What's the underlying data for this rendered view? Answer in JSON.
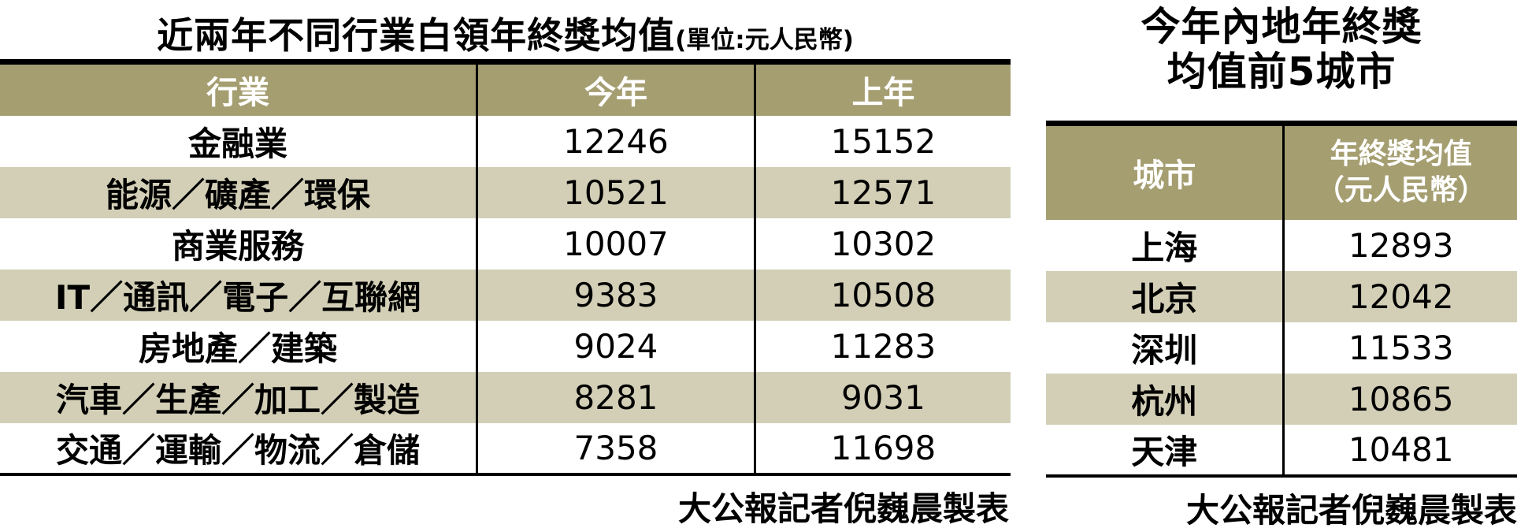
{
  "colors": {
    "header_bg": "#a59e71",
    "row_alt_bg": "#d3cfb7",
    "rule": "#000000",
    "header_text": "#ffffff",
    "body_text": "#000000"
  },
  "chart_data": [
    {
      "type": "table",
      "title": "近兩年不同行業白領年終獎均值",
      "title_unit": "(單位:元人民幣)",
      "columns": [
        "行業",
        "今年",
        "上年"
      ],
      "rows": [
        [
          "金融業",
          "12246",
          "15152"
        ],
        [
          "能源／礦產／環保",
          "10521",
          "12571"
        ],
        [
          "商業服務",
          "10007",
          "10302"
        ],
        [
          "IT／通訊／電子／互聯網",
          "9383",
          "10508"
        ],
        [
          "房地產／建築",
          "9024",
          "11283"
        ],
        [
          "汽車／生產／加工／製造",
          "8281",
          "9031"
        ],
        [
          "交通／運輸／物流／倉儲",
          "7358",
          "11698"
        ]
      ],
      "credit": "大公報記者倪巍晨製表",
      "layout": {
        "grid": "off",
        "striped": true,
        "header_style": "olive band, white text"
      }
    },
    {
      "type": "table",
      "title": "今年內地年終獎均值前5城市",
      "title_lines": [
        "今年內地年終獎",
        "均值前5城市"
      ],
      "columns": [
        "城市",
        "年終獎均值（元人民幣）"
      ],
      "header_line1": "年終獎均值",
      "header_line2": "（元人民幣）",
      "rows": [
        [
          "上海",
          "12893"
        ],
        [
          "北京",
          "12042"
        ],
        [
          "深圳",
          "11533"
        ],
        [
          "杭州",
          "10865"
        ],
        [
          "天津",
          "10481"
        ]
      ],
      "credit": "大公報記者倪巍晨製表",
      "layout": {
        "grid": "off",
        "striped": true,
        "header_style": "olive band, white text"
      }
    }
  ]
}
